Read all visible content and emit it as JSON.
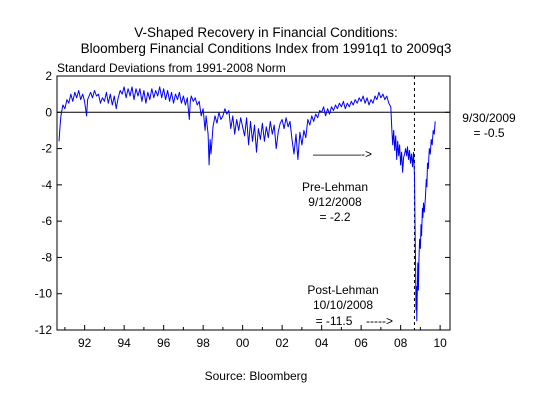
{
  "chart_data": {
    "type": "line",
    "title_line1": "V-Shaped Recovery in Financial Conditions:",
    "title_line2": "Bloomberg Financial Conditions Index from 1991q1 to 2009q3",
    "subtitle": "Standard Deviations from 1991-2008 Norm",
    "source": "Source:  Bloomberg",
    "xlim": [
      1990.6,
      2010.5
    ],
    "ylim": [
      -12,
      2
    ],
    "x_ticks": [
      {
        "value": 1992,
        "label": "92"
      },
      {
        "value": 1994,
        "label": "94"
      },
      {
        "value": 1996,
        "label": "96"
      },
      {
        "value": 1998,
        "label": "98"
      },
      {
        "value": 2000,
        "label": "00"
      },
      {
        "value": 2002,
        "label": "02"
      },
      {
        "value": 2004,
        "label": "04"
      },
      {
        "value": 2006,
        "label": "06"
      },
      {
        "value": 2008,
        "label": "08"
      },
      {
        "value": 2010,
        "label": "10"
      }
    ],
    "y_ticks": [
      2,
      0,
      -2,
      -4,
      -6,
      -8,
      -10,
      -12
    ],
    "zero_line": 0,
    "lehman_marker_x": 2008.7,
    "series": [
      {
        "color": "#0000ff",
        "points": [
          [
            1990.7,
            -1.6
          ],
          [
            1990.75,
            -0.8
          ],
          [
            1990.8,
            -0.2
          ],
          [
            1990.9,
            0.4
          ],
          [
            1991.0,
            0.2
          ],
          [
            1991.1,
            0.7
          ],
          [
            1991.2,
            0.5
          ],
          [
            1991.3,
            1.0
          ],
          [
            1991.4,
            0.6
          ],
          [
            1991.5,
            1.1
          ],
          [
            1991.6,
            0.8
          ],
          [
            1991.7,
            1.2
          ],
          [
            1991.8,
            0.7
          ],
          [
            1991.9,
            1.0
          ],
          [
            1992.0,
            0.6
          ],
          [
            1992.1,
            -0.2
          ],
          [
            1992.15,
            0.7
          ],
          [
            1992.3,
            1.1
          ],
          [
            1992.4,
            0.8
          ],
          [
            1992.5,
            1.2
          ],
          [
            1992.6,
            0.9
          ],
          [
            1992.7,
            1.0
          ],
          [
            1992.8,
            0.5
          ],
          [
            1992.9,
            0.8
          ],
          [
            1993.0,
            0.6
          ],
          [
            1993.1,
            1.1
          ],
          [
            1993.2,
            0.5
          ],
          [
            1993.3,
            1.0
          ],
          [
            1993.4,
            0.4
          ],
          [
            1993.5,
            0.9
          ],
          [
            1993.6,
            0.2
          ],
          [
            1993.7,
            0.8
          ],
          [
            1993.8,
            1.2
          ],
          [
            1993.9,
            1.0
          ],
          [
            1994.0,
            1.4
          ],
          [
            1994.1,
            0.8
          ],
          [
            1994.2,
            1.3
          ],
          [
            1994.3,
            0.9
          ],
          [
            1994.4,
            1.4
          ],
          [
            1994.5,
            0.7
          ],
          [
            1994.6,
            1.3
          ],
          [
            1994.7,
            0.9
          ],
          [
            1994.8,
            1.3
          ],
          [
            1994.9,
            0.6
          ],
          [
            1995.0,
            1.2
          ],
          [
            1995.1,
            0.5
          ],
          [
            1995.2,
            1.1
          ],
          [
            1995.3,
            0.7
          ],
          [
            1995.4,
            1.3
          ],
          [
            1995.5,
            0.8
          ],
          [
            1995.6,
            1.2
          ],
          [
            1995.7,
            0.9
          ],
          [
            1995.8,
            1.4
          ],
          [
            1995.9,
            0.8
          ],
          [
            1996.0,
            1.3
          ],
          [
            1996.1,
            0.7
          ],
          [
            1996.2,
            1.2
          ],
          [
            1996.3,
            0.6
          ],
          [
            1996.4,
            1.1
          ],
          [
            1996.5,
            0.5
          ],
          [
            1996.6,
            1.0
          ],
          [
            1996.7,
            0.7
          ],
          [
            1996.8,
            1.1
          ],
          [
            1996.9,
            0.5
          ],
          [
            1997.0,
            0.9
          ],
          [
            1997.1,
            0.4
          ],
          [
            1997.2,
            0.8
          ],
          [
            1997.3,
            -0.4
          ],
          [
            1997.35,
            0.6
          ],
          [
            1997.4,
            0.9
          ],
          [
            1997.5,
            0.6
          ],
          [
            1997.6,
            0.8
          ],
          [
            1997.7,
            0.4
          ],
          [
            1997.8,
            0.6
          ],
          [
            1997.9,
            -0.2
          ],
          [
            1998.0,
            0.2
          ],
          [
            1998.1,
            -1.0
          ],
          [
            1998.15,
            -0.2
          ],
          [
            1998.25,
            -1.2
          ],
          [
            1998.3,
            -2.9
          ],
          [
            1998.35,
            -1.5
          ],
          [
            1998.4,
            -2.3
          ],
          [
            1998.5,
            -0.8
          ],
          [
            1998.6,
            -0.2
          ],
          [
            1998.7,
            -0.6
          ],
          [
            1998.8,
            0.0
          ],
          [
            1998.9,
            -0.4
          ],
          [
            1999.0,
            -0.2
          ],
          [
            1999.1,
            0.2
          ],
          [
            1999.2,
            -0.1
          ],
          [
            1999.3,
            0.1
          ],
          [
            1999.4,
            -0.9
          ],
          [
            1999.5,
            -0.2
          ],
          [
            1999.6,
            -1.2
          ],
          [
            1999.7,
            -0.4
          ],
          [
            1999.8,
            -1.0
          ],
          [
            1999.9,
            -0.3
          ],
          [
            2000.0,
            -0.8
          ],
          [
            2000.1,
            -1.3
          ],
          [
            2000.2,
            -0.3
          ],
          [
            2000.3,
            -1.8
          ],
          [
            2000.4,
            -0.5
          ],
          [
            2000.5,
            -1.6
          ],
          [
            2000.6,
            -0.7
          ],
          [
            2000.7,
            -2.2
          ],
          [
            2000.8,
            -0.9
          ],
          [
            2000.9,
            -1.5
          ],
          [
            2001.0,
            -0.6
          ],
          [
            2001.1,
            -1.6
          ],
          [
            2001.2,
            -0.8
          ],
          [
            2001.3,
            -1.4
          ],
          [
            2001.4,
            -0.5
          ],
          [
            2001.5,
            -1.2
          ],
          [
            2001.6,
            -0.7
          ],
          [
            2001.7,
            -2.0
          ],
          [
            2001.8,
            -1.1
          ],
          [
            2001.9,
            -0.6
          ],
          [
            2002.0,
            -0.4
          ],
          [
            2002.1,
            -0.9
          ],
          [
            2002.2,
            -0.3
          ],
          [
            2002.3,
            -0.8
          ],
          [
            2002.4,
            -0.5
          ],
          [
            2002.5,
            -1.5
          ],
          [
            2002.6,
            -2.3
          ],
          [
            2002.7,
            -1.2
          ],
          [
            2002.8,
            -2.6
          ],
          [
            2002.9,
            -1.1
          ],
          [
            2003.0,
            -1.8
          ],
          [
            2003.1,
            -1.0
          ],
          [
            2003.2,
            -1.4
          ],
          [
            2003.3,
            -0.4
          ],
          [
            2003.4,
            -0.7
          ],
          [
            2003.5,
            -0.2
          ],
          [
            2003.6,
            -0.5
          ],
          [
            2003.7,
            -0.1
          ],
          [
            2003.8,
            -0.3
          ],
          [
            2003.9,
            0.1
          ],
          [
            2004.0,
            0.0
          ],
          [
            2004.1,
            0.3
          ],
          [
            2004.2,
            -0.2
          ],
          [
            2004.3,
            0.2
          ],
          [
            2004.4,
            -0.1
          ],
          [
            2004.5,
            0.3
          ],
          [
            2004.6,
            0.1
          ],
          [
            2004.7,
            0.4
          ],
          [
            2004.8,
            0.2
          ],
          [
            2004.9,
            0.5
          ],
          [
            2005.0,
            0.3
          ],
          [
            2005.1,
            0.6
          ],
          [
            2005.2,
            0.2
          ],
          [
            2005.3,
            0.5
          ],
          [
            2005.4,
            0.3
          ],
          [
            2005.5,
            0.6
          ],
          [
            2005.6,
            0.4
          ],
          [
            2005.7,
            0.7
          ],
          [
            2005.8,
            0.5
          ],
          [
            2005.9,
            0.8
          ],
          [
            2006.0,
            0.6
          ],
          [
            2006.1,
            0.9
          ],
          [
            2006.2,
            0.5
          ],
          [
            2006.3,
            0.8
          ],
          [
            2006.4,
            0.4
          ],
          [
            2006.5,
            0.7
          ],
          [
            2006.6,
            0.5
          ],
          [
            2006.7,
            0.9
          ],
          [
            2006.8,
            0.7
          ],
          [
            2006.9,
            1.1
          ],
          [
            2007.0,
            0.8
          ],
          [
            2007.1,
            1.0
          ],
          [
            2007.2,
            0.7
          ],
          [
            2007.3,
            0.9
          ],
          [
            2007.4,
            0.5
          ],
          [
            2007.5,
            0.3
          ],
          [
            2007.55,
            -0.8
          ],
          [
            2007.6,
            -1.8
          ],
          [
            2007.65,
            -1.0
          ],
          [
            2007.7,
            -2.1
          ],
          [
            2007.75,
            -1.3
          ],
          [
            2007.8,
            -2.6
          ],
          [
            2007.85,
            -1.6
          ],
          [
            2007.9,
            -2.4
          ],
          [
            2007.95,
            -1.8
          ],
          [
            2008.0,
            -2.9
          ],
          [
            2008.05,
            -2.2
          ],
          [
            2008.1,
            -3.3
          ],
          [
            2008.15,
            -2.5
          ],
          [
            2008.2,
            -2.3
          ],
          [
            2008.25,
            -2.0
          ],
          [
            2008.3,
            -2.4
          ],
          [
            2008.35,
            -1.9
          ],
          [
            2008.4,
            -2.6
          ],
          [
            2008.45,
            -2.1
          ],
          [
            2008.5,
            -2.8
          ],
          [
            2008.55,
            -2.3
          ],
          [
            2008.6,
            -3.0
          ],
          [
            2008.65,
            -2.2
          ],
          [
            2008.7,
            -3.5
          ],
          [
            2008.73,
            -6.0
          ],
          [
            2008.76,
            -8.5
          ],
          [
            2008.78,
            -10.9
          ],
          [
            2008.8,
            -9.6
          ],
          [
            2008.82,
            -11.5
          ],
          [
            2008.84,
            -10.2
          ],
          [
            2008.87,
            -8.3
          ],
          [
            2008.9,
            -9.8
          ],
          [
            2008.93,
            -8.0
          ],
          [
            2008.96,
            -7.0
          ],
          [
            2009.0,
            -7.5
          ],
          [
            2009.03,
            -6.2
          ],
          [
            2009.06,
            -6.8
          ],
          [
            2009.1,
            -5.3
          ],
          [
            2009.13,
            -5.8
          ],
          [
            2009.16,
            -5.0
          ],
          [
            2009.2,
            -5.5
          ],
          [
            2009.25,
            -4.8
          ],
          [
            2009.3,
            -3.7
          ],
          [
            2009.33,
            -4.1
          ],
          [
            2009.36,
            -2.8
          ],
          [
            2009.4,
            -3.1
          ],
          [
            2009.45,
            -2.0
          ],
          [
            2009.5,
            -2.3
          ],
          [
            2009.55,
            -1.5
          ],
          [
            2009.6,
            -1.8
          ],
          [
            2009.65,
            -1.0
          ],
          [
            2009.7,
            -1.2
          ],
          [
            2009.75,
            -0.5
          ]
        ]
      }
    ],
    "annotations": {
      "end_value": {
        "line1": "9/30/2009",
        "line2": "= -0.5"
      },
      "pre_lehman": {
        "arrow": "————->",
        "line1": "Pre-Lehman",
        "line2": "9/12/2008",
        "line3": "= -2.2"
      },
      "post_lehman": {
        "line1": "Post-Lehman",
        "line2": "10/10/2008",
        "line3": "= -11.5",
        "arrow": "-----> "
      }
    }
  }
}
